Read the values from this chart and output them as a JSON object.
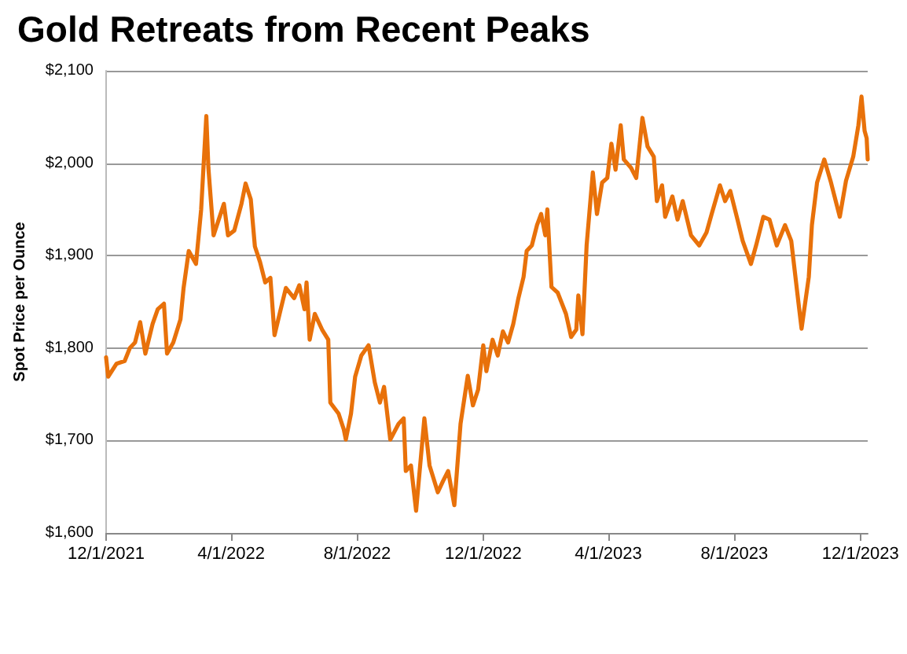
{
  "chart_data": {
    "type": "line",
    "title": "Gold Retreats from Recent Peaks",
    "ylabel": "Spot Price per Ounce",
    "x": [
      "2021-12-01",
      "2021-12-03",
      "2021-12-11",
      "2021-12-19",
      "2021-12-24",
      "2021-12-29",
      "2022-01-03",
      "2022-01-08",
      "2022-01-15",
      "2022-01-20",
      "2022-01-26",
      "2022-01-29",
      "2022-02-04",
      "2022-02-11",
      "2022-02-14",
      "2022-02-19",
      "2022-02-26",
      "2022-03-03",
      "2022-03-08",
      "2022-03-10",
      "2022-03-15",
      "2022-03-20",
      "2022-03-25",
      "2022-03-29",
      "2022-04-04",
      "2022-04-11",
      "2022-04-15",
      "2022-04-20",
      "2022-04-24",
      "2022-04-29",
      "2022-05-04",
      "2022-05-09",
      "2022-05-13",
      "2022-05-19",
      "2022-05-24",
      "2022-06-01",
      "2022-06-06",
      "2022-06-11",
      "2022-06-13",
      "2022-06-16",
      "2022-06-21",
      "2022-06-28",
      "2022-07-04",
      "2022-07-06",
      "2022-07-14",
      "2022-07-19",
      "2022-07-21",
      "2022-07-26",
      "2022-07-30",
      "2022-08-05",
      "2022-08-12",
      "2022-08-18",
      "2022-08-23",
      "2022-08-27",
      "2022-09-02",
      "2022-09-10",
      "2022-09-15",
      "2022-09-17",
      "2022-09-22",
      "2022-09-27",
      "2022-10-05",
      "2022-10-10",
      "2022-10-18",
      "2022-10-23",
      "2022-10-28",
      "2022-11-03",
      "2022-11-09",
      "2022-11-16",
      "2022-11-21",
      "2022-11-26",
      "2022-12-01",
      "2022-12-04",
      "2022-12-10",
      "2022-12-15",
      "2022-12-20",
      "2022-12-25",
      "2022-12-30",
      "2023-01-04",
      "2023-01-09",
      "2023-01-12",
      "2023-01-17",
      "2023-01-22",
      "2023-01-26",
      "2023-01-30",
      "2023-02-01",
      "2023-02-05",
      "2023-02-11",
      "2023-02-19",
      "2023-02-24",
      "2023-03-01",
      "2023-03-03",
      "2023-03-07",
      "2023-03-11",
      "2023-03-17",
      "2023-03-21",
      "2023-03-26",
      "2023-03-31",
      "2023-04-04",
      "2023-04-08",
      "2023-04-13",
      "2023-04-16",
      "2023-04-23",
      "2023-04-28",
      "2023-05-04",
      "2023-05-09",
      "2023-05-15",
      "2023-05-18",
      "2023-05-23",
      "2023-05-26",
      "2023-06-02",
      "2023-06-07",
      "2023-06-12",
      "2023-06-20",
      "2023-06-28",
      "2023-07-05",
      "2023-07-10",
      "2023-07-18",
      "2023-07-23",
      "2023-07-28",
      "2023-08-04",
      "2023-08-09",
      "2023-08-17",
      "2023-08-22",
      "2023-08-29",
      "2023-09-04",
      "2023-09-11",
      "2023-09-19",
      "2023-09-25",
      "2023-10-02",
      "2023-10-05",
      "2023-10-12",
      "2023-10-15",
      "2023-10-20",
      "2023-10-27",
      "2023-11-02",
      "2023-11-11",
      "2023-11-17",
      "2023-11-24",
      "2023-11-29",
      "2023-12-02",
      "2023-12-05",
      "2023-12-07",
      "2023-12-08"
    ],
    "series": [
      {
        "color": "#e8710a",
        "values": [
          1790,
          1769,
          1783,
          1786,
          1800,
          1806,
          1828,
          1794,
          1826,
          1842,
          1848,
          1794,
          1806,
          1831,
          1865,
          1905,
          1891,
          1950,
          2051,
          1995,
          1922,
          1939,
          1956,
          1922,
          1927,
          1956,
          1978,
          1961,
          1910,
          1893,
          1871,
          1876,
          1814,
          1842,
          1865,
          1854,
          1868,
          1842,
          1871,
          1809,
          1837,
          1820,
          1809,
          1741,
          1729,
          1712,
          1701,
          1729,
          1769,
          1792,
          1803,
          1763,
          1741,
          1758,
          1701,
          1718,
          1724,
          1667,
          1673,
          1624,
          1724,
          1673,
          1644,
          1656,
          1667,
          1630,
          1718,
          1770,
          1738,
          1755,
          1803,
          1775,
          1809,
          1792,
          1818,
          1806,
          1826,
          1854,
          1877,
          1905,
          1911,
          1933,
          1945,
          1922,
          1950,
          1866,
          1860,
          1837,
          1812,
          1820,
          1857,
          1815,
          1911,
          1990,
          1945,
          1979,
          1984,
          2021,
          1993,
          2041,
          2004,
          1995,
          1984,
          2049,
          2018,
          2007,
          1959,
          1976,
          1942,
          1964,
          1939,
          1959,
          1922,
          1911,
          1925,
          1945,
          1976,
          1959,
          1970,
          1939,
          1916,
          1891,
          1911,
          1942,
          1939,
          1911,
          1933,
          1916,
          1849,
          1821,
          1877,
          1933,
          1979,
          2004,
          1981,
          1942,
          1981,
          2007,
          2041,
          2072,
          2035,
          2027,
          2004
        ]
      }
    ],
    "xlim": [
      "2021-12-01",
      "2023-12-08"
    ],
    "xticks": [
      {
        "value": "2021-12-01",
        "label": "12/1/2021"
      },
      {
        "value": "2022-04-01",
        "label": "4/1/2022"
      },
      {
        "value": "2022-08-01",
        "label": "8/1/2022"
      },
      {
        "value": "2022-12-01",
        "label": "12/1/2022"
      },
      {
        "value": "2023-04-01",
        "label": "4/1/2023"
      },
      {
        "value": "2023-08-01",
        "label": "8/1/2023"
      },
      {
        "value": "2023-12-01",
        "label": "12/1/2023"
      }
    ],
    "ylim": [
      1600,
      2100
    ],
    "yticks": [
      {
        "value": 1600,
        "label": "$1,600"
      },
      {
        "value": 1700,
        "label": "$1,700"
      },
      {
        "value": 1800,
        "label": "$1,800"
      },
      {
        "value": 1900,
        "label": "$1,900"
      },
      {
        "value": 2000,
        "label": "$2,000"
      },
      {
        "value": 2100,
        "label": "$2,100"
      }
    ],
    "grid": "y",
    "marker": "none",
    "line_style": "solid"
  }
}
